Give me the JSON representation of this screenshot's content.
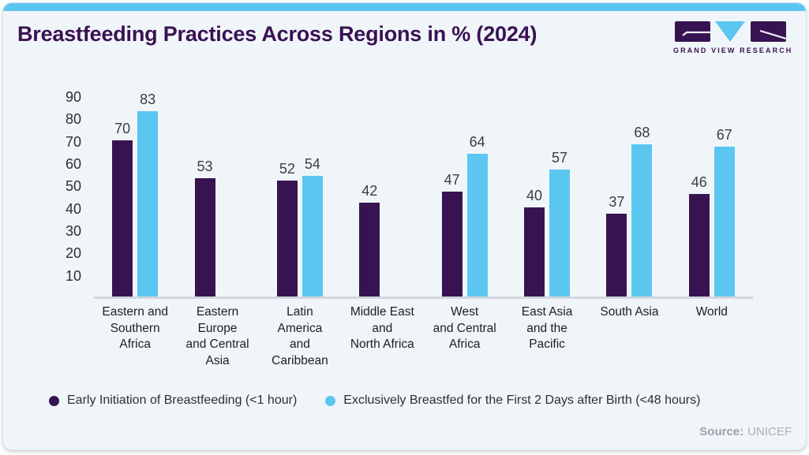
{
  "header": {
    "title": "Breastfeeding Practices Across Regions in % (2024)",
    "logo_text": "GRAND VIEW RESEARCH"
  },
  "colors": {
    "brand_purple": "#371352",
    "brand_blue": "#5bc7f0",
    "card_background": "#f0f5f9",
    "baseline_gray": "#d2d7dc"
  },
  "chart_data": {
    "type": "bar",
    "title": "Breastfeeding Practices Across Regions in % (2024)",
    "categories": [
      "Eastern and Southern Africa",
      "Eastern Europe and Central Asia",
      "Latin America and Caribbean",
      "Middle East and North Africa",
      "West and Central Africa",
      "East Asia and the Pacific",
      "South Asia",
      "World"
    ],
    "category_lines": [
      [
        "Eastern and",
        "Southern",
        "Africa"
      ],
      [
        "Eastern",
        "Europe",
        "and Central",
        "Asia"
      ],
      [
        "Latin",
        "America",
        "and",
        "Caribbean"
      ],
      [
        "Middle East",
        "and",
        "North Africa"
      ],
      [
        "West",
        "and Central",
        "Africa"
      ],
      [
        "East Asia",
        "and the",
        "Pacific"
      ],
      [
        "South Asia"
      ],
      [
        "World"
      ]
    ],
    "series": [
      {
        "name": "Early Initiation of Breastfeeding (<1 hour)",
        "color": "#371352",
        "values": [
          70,
          53,
          52,
          42,
          47,
          40,
          37,
          46
        ]
      },
      {
        "name": "Exclusively Breastfed for the First 2 Days after Birth (<48 hours)",
        "color": "#5bc7f0",
        "values": [
          83,
          null,
          54,
          null,
          64,
          57,
          68,
          67
        ]
      }
    ],
    "y_ticks": [
      90,
      80,
      70,
      60,
      50,
      40,
      30,
      20,
      10
    ],
    "ylim": [
      0,
      90
    ],
    "grid": false,
    "legend_position": "bottom"
  },
  "footer": {
    "source_label": "Source:",
    "source_value": "UNICEF"
  }
}
